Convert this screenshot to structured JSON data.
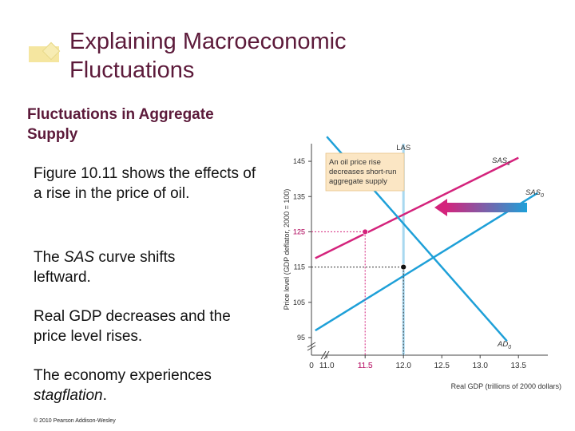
{
  "slide": {
    "title_line1": "Explaining Macroeconomic",
    "title_line2": "Fluctuations",
    "subtitle_line1": "Fluctuations in Aggregate",
    "subtitle_line2": "Supply",
    "p1": "Figure 10.11 shows the effects of a rise in the price of oil.",
    "p2_pre": "The ",
    "p2_em": "SAS",
    "p2_post": " curve shifts leftward.",
    "p3": "Real GDP decreases and the price level rises.",
    "p4_pre": "The economy experiences ",
    "p4_em": "stagflation",
    "p4_post": ".",
    "copyright": "© 2010 Pearson Addison-Wesley",
    "accent_color": "#5c1a3a"
  },
  "chart_data": {
    "type": "line",
    "xlabel": "Real GDP (trillions of 2000 dollars)",
    "ylabel": "Price level (GDP deflator, 2000 = 100)",
    "x_ticks": [
      "0",
      "11.0",
      "11.5",
      "12.0",
      "12.5",
      "13.0",
      "13.5"
    ],
    "y_ticks": [
      "95",
      "105",
      "115",
      "125",
      "135",
      "145"
    ],
    "xlim": [
      10.8,
      13.8
    ],
    "ylim": [
      90,
      150
    ],
    "annotation": [
      "An oil price rise",
      "decreases short-run",
      "aggregate supply"
    ],
    "series": [
      {
        "name": "LAS",
        "color": "#a8d8f0",
        "points": [
          [
            12.0,
            90
          ],
          [
            12.0,
            150
          ]
        ]
      },
      {
        "name": "SAS1",
        "color": "#d4237c",
        "points": [
          [
            10.85,
            117.5
          ],
          [
            13.5,
            146
          ]
        ]
      },
      {
        "name": "SAS0",
        "color": "#1ea0d8",
        "points": [
          [
            10.85,
            97
          ],
          [
            13.75,
            136
          ]
        ]
      },
      {
        "name": "AD0",
        "color": "#1ea0d8",
        "points": [
          [
            11.0,
            152
          ],
          [
            13.35,
            94
          ]
        ]
      }
    ],
    "equilibria": [
      {
        "x": 11.5,
        "y": 125,
        "color": "#d4237c"
      },
      {
        "x": 12.0,
        "y": 115,
        "color": "#111111"
      }
    ],
    "guide_color": "#d4237c"
  }
}
